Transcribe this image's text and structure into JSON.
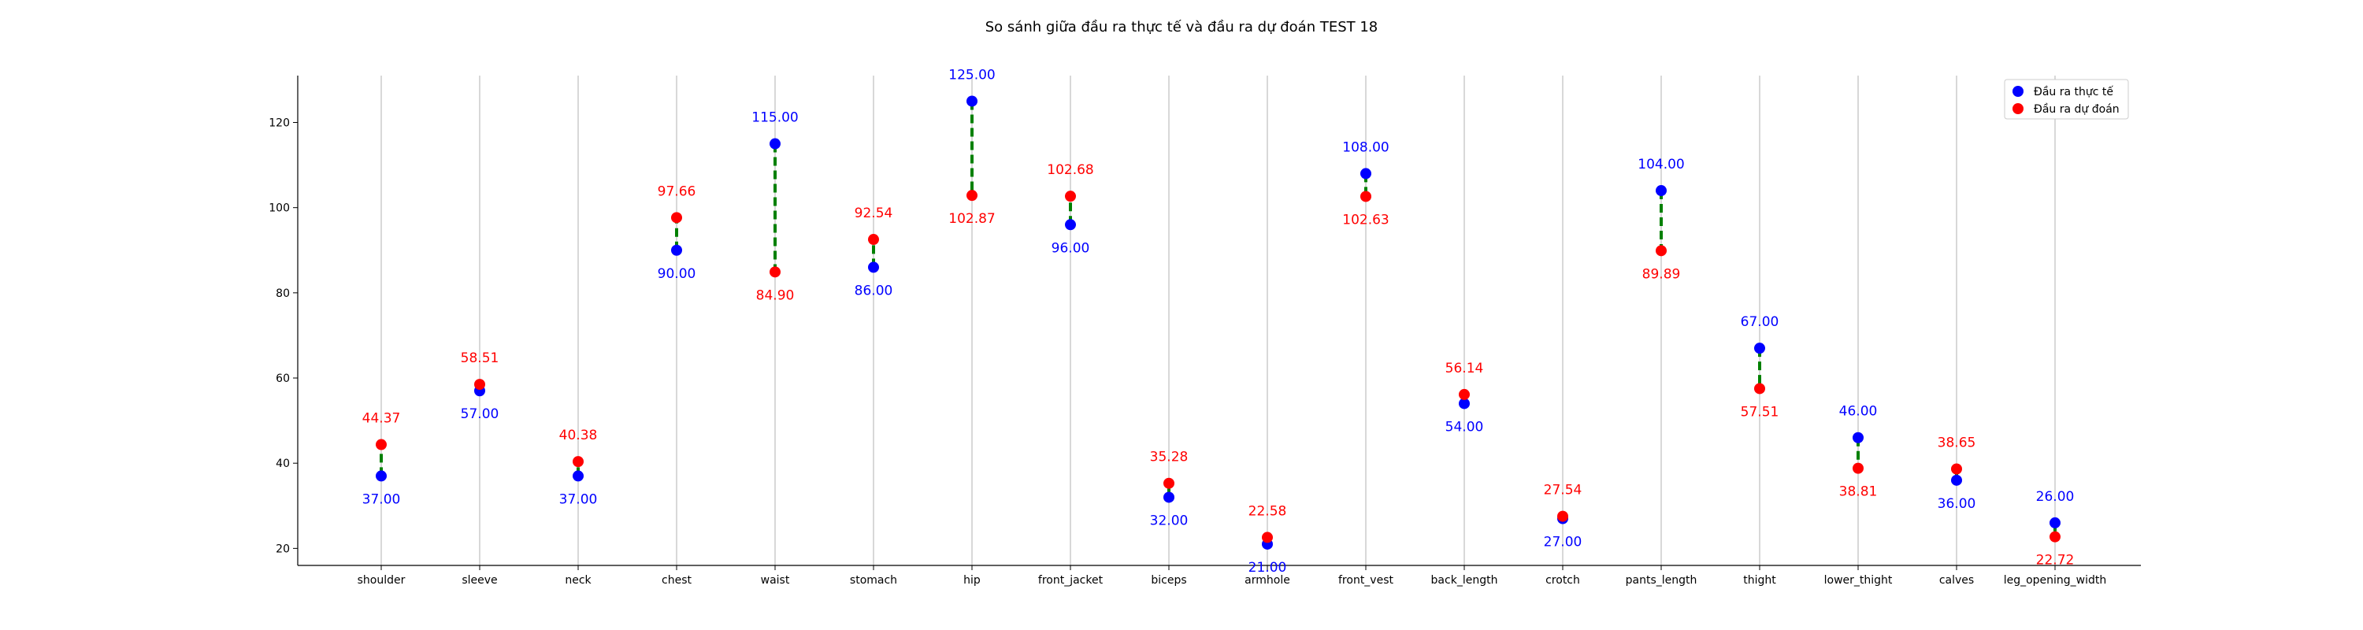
{
  "chart_data": {
    "type": "scatter",
    "title": "So sánh giữa đầu ra thực tế và đầu ra dự đoán TEST 18",
    "xlabel": "",
    "ylabel": "",
    "categories": [
      "shoulder",
      "sleeve",
      "neck",
      "chest",
      "waist",
      "stomach",
      "hip",
      "front_jacket",
      "biceps",
      "armhole",
      "front_vest",
      "back_length",
      "crotch",
      "pants_length",
      "thight",
      "lower_thight",
      "calves",
      "leg_opening_width"
    ],
    "series": [
      {
        "name": "Đầu ra thực tế",
        "color": "#0000ff",
        "values": [
          37.0,
          57.0,
          37.0,
          90.0,
          115.0,
          86.0,
          125.0,
          96.0,
          32.0,
          21.0,
          108.0,
          54.0,
          27.0,
          104.0,
          67.0,
          46.0,
          36.0,
          26.0
        ],
        "labels": [
          "37.00",
          "57.00",
          "37.00",
          "90.00",
          "115.00",
          "86.00",
          "125.00",
          "96.00",
          "32.00",
          "21.00",
          "108.00",
          "54.00",
          "27.00",
          "104.00",
          "67.00",
          "46.00",
          "36.00",
          "26.00"
        ]
      },
      {
        "name": "Đầu ra dự đoán",
        "color": "#ff0000",
        "values": [
          44.37,
          58.51,
          40.38,
          97.66,
          84.9,
          92.54,
          102.87,
          102.68,
          35.28,
          22.58,
          102.63,
          56.14,
          27.54,
          89.89,
          57.51,
          38.81,
          38.65,
          22.72
        ],
        "labels": [
          "44.37",
          "58.51",
          "40.38",
          "97.66",
          "84.90",
          "92.54",
          "102.87",
          "102.68",
          "35.28",
          "22.58",
          "102.63",
          "56.14",
          "27.54",
          "89.89",
          "57.51",
          "38.81",
          "38.65",
          "22.72"
        ]
      }
    ],
    "connector_color": "#008000",
    "ylim": [
      16,
      131
    ],
    "yticks": [
      20,
      40,
      60,
      80,
      100,
      120
    ],
    "ytick_labels": [
      "20",
      "40",
      "60",
      "80",
      "100",
      "120"
    ],
    "grid": "vertical",
    "legend": "top-right"
  }
}
